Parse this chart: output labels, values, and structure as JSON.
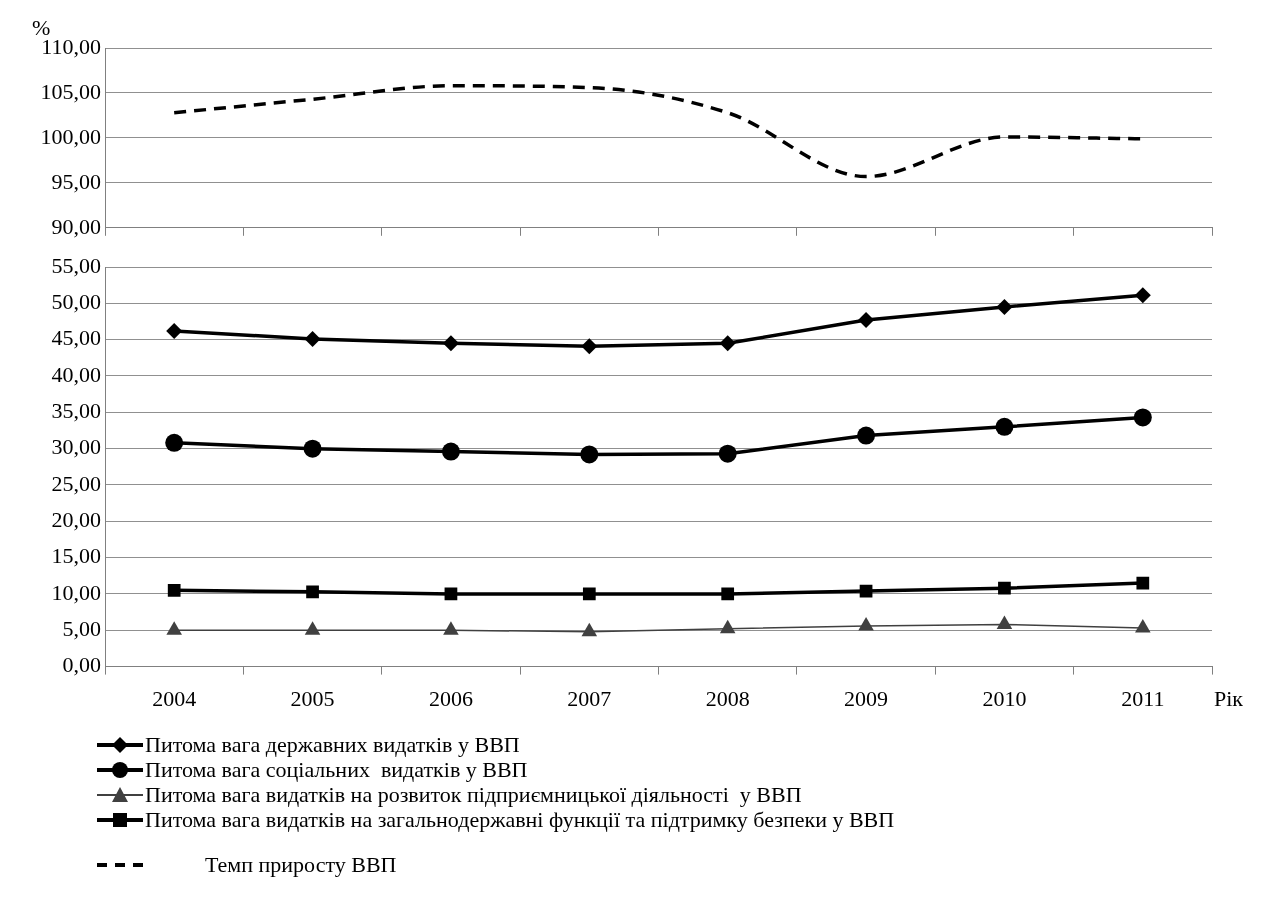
{
  "chart_data": [
    {
      "type": "line",
      "ylabel": "%",
      "categories": [
        "2004",
        "2005",
        "2006",
        "2007",
        "2008",
        "2009",
        "2010",
        "2011"
      ],
      "tick_labels": "y",
      "ylim": [
        90,
        110
      ],
      "yticks": [
        {
          "value": 90,
          "label": "90,00"
        },
        {
          "value": 95,
          "label": "95,00"
        },
        {
          "value": 100,
          "label": "100,00"
        },
        {
          "value": 105,
          "label": "105,00"
        },
        {
          "value": 110,
          "label": "110,00"
        }
      ],
      "grid": "y",
      "legend": "bottom",
      "series": [
        {
          "name": "Темп приросту ВВП",
          "color": "#000000",
          "marker": "none",
          "line_style": "dashed",
          "values": [
            102.8,
            104.3,
            105.8,
            105.6,
            102.8,
            95.7,
            100.1,
            99.9
          ]
        }
      ]
    },
    {
      "type": "line",
      "xlabel": "Рік",
      "categories": [
        "2004",
        "2005",
        "2006",
        "2007",
        "2008",
        "2009",
        "2010",
        "2011"
      ],
      "ylim": [
        0,
        55
      ],
      "yticks": [
        {
          "value": 0,
          "label": "0,00"
        },
        {
          "value": 5,
          "label": "5,00"
        },
        {
          "value": 10,
          "label": "10,00"
        },
        {
          "value": 15,
          "label": "15,00"
        },
        {
          "value": 20,
          "label": "20,00"
        },
        {
          "value": 25,
          "label": "25,00"
        },
        {
          "value": 30,
          "label": "30,00"
        },
        {
          "value": 35,
          "label": "35,00"
        },
        {
          "value": 40,
          "label": "40,00"
        },
        {
          "value": 45,
          "label": "45,00"
        },
        {
          "value": 50,
          "label": "50,00"
        },
        {
          "value": 55,
          "label": "55,00"
        }
      ],
      "grid": "y",
      "legend": "bottom",
      "series": [
        {
          "name": "Питома вага державних видатків у ВВП",
          "color": "#000000",
          "marker": "diamond",
          "line_style": "solid",
          "values": [
            46.2,
            45.1,
            44.5,
            44.1,
            44.5,
            47.7,
            49.5,
            51.1
          ]
        },
        {
          "name": "Питома вага соціальних  видатків у ВВП",
          "color": "#000000",
          "marker": "circle",
          "line_style": "solid",
          "values": [
            30.8,
            30.0,
            29.6,
            29.2,
            29.3,
            31.8,
            33.0,
            34.3
          ]
        },
        {
          "name": "Питома вага видатків на розвиток підприємницької діяльності  у ВВП",
          "color": "#404040",
          "marker": "triangle",
          "line_style": "solid",
          "values": [
            5.0,
            5.0,
            5.0,
            4.8,
            5.2,
            5.6,
            5.8,
            5.3
          ]
        },
        {
          "name": "Питома вага видатків на загальнодержавні функції та підтримку безпеки у ВВП",
          "color": "#000000",
          "marker": "square",
          "line_style": "solid",
          "values": [
            10.5,
            10.3,
            10.0,
            10.0,
            10.0,
            10.4,
            10.8,
            11.5
          ]
        }
      ]
    }
  ]
}
